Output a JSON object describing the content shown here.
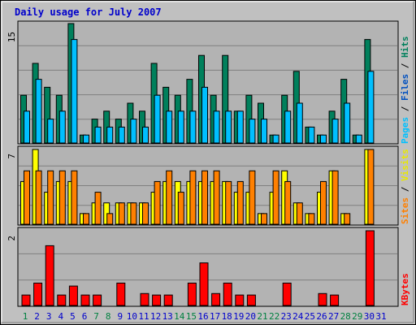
{
  "chart_data": [
    {
      "type": "bar",
      "title": "Daily usage for July 2007",
      "panel": "hits-files-pages",
      "ymax_label": "15",
      "legend": [
        "Pages",
        "Files",
        "Hits"
      ],
      "categories": [
        "1",
        "2",
        "3",
        "4",
        "5",
        "6",
        "7",
        "8",
        "9",
        "10",
        "11",
        "12",
        "13",
        "14",
        "15",
        "16",
        "17",
        "18",
        "19",
        "20",
        "21",
        "22",
        "23",
        "24",
        "25",
        "26",
        "27",
        "28",
        "29",
        "30",
        "31"
      ],
      "weekend_days": [
        "1",
        "7",
        "8",
        "14",
        "15",
        "21",
        "22",
        "28",
        "29"
      ],
      "series": [
        {
          "name": "Hits",
          "values": [
            6,
            10,
            7,
            6,
            15,
            1,
            3,
            4,
            3,
            5,
            4,
            10,
            7,
            6,
            8,
            11,
            6,
            11,
            4,
            6,
            5,
            1,
            6,
            9,
            2,
            1,
            4,
            8,
            1,
            13,
            0
          ]
        },
        {
          "name": "Files",
          "values": [
            4,
            8,
            3,
            4,
            13,
            1,
            2,
            2,
            2,
            3,
            2,
            6,
            4,
            4,
            4,
            7,
            4,
            4,
            4,
            3,
            3,
            1,
            4,
            5,
            2,
            1,
            3,
            5,
            1,
            9,
            0
          ]
        },
        {
          "name": "Pages",
          "values": [
            0,
            0,
            0,
            0,
            0,
            0,
            0,
            0,
            0,
            0,
            0,
            0,
            0,
            0,
            0,
            0,
            0,
            0,
            0,
            0,
            0,
            0,
            0,
            0,
            0,
            0,
            0,
            0,
            0,
            0,
            0
          ]
        }
      ]
    },
    {
      "type": "bar",
      "panel": "visits-sites",
      "ymax_label": "7",
      "legend": [
        "Sites",
        "Visits"
      ],
      "categories": [
        "1",
        "2",
        "3",
        "4",
        "5",
        "6",
        "7",
        "8",
        "9",
        "10",
        "11",
        "12",
        "13",
        "14",
        "15",
        "16",
        "17",
        "18",
        "19",
        "20",
        "21",
        "22",
        "23",
        "24",
        "25",
        "26",
        "27",
        "28",
        "29",
        "30",
        "31"
      ],
      "series": [
        {
          "name": "Visits",
          "values": [
            4,
            7,
            3,
            4,
            4,
            1,
            2,
            2,
            2,
            2,
            2,
            3,
            4,
            4,
            4,
            4,
            4,
            4,
            3,
            3,
            1,
            3,
            5,
            2,
            1,
            3,
            5,
            1,
            0,
            7,
            0
          ]
        },
        {
          "name": "Sites",
          "values": [
            5,
            5,
            5,
            5,
            5,
            1,
            3,
            1,
            2,
            2,
            2,
            4,
            5,
            3,
            5,
            5,
            5,
            4,
            4,
            5,
            1,
            5,
            4,
            2,
            1,
            4,
            5,
            1,
            0,
            7,
            0
          ]
        }
      ]
    },
    {
      "type": "bar",
      "panel": "kbytes",
      "ymax_label": "2",
      "legend": [
        "KBytes"
      ],
      "categories": [
        "1",
        "2",
        "3",
        "4",
        "5",
        "6",
        "7",
        "8",
        "9",
        "10",
        "11",
        "12",
        "13",
        "14",
        "15",
        "16",
        "17",
        "18",
        "19",
        "20",
        "21",
        "22",
        "23",
        "24",
        "25",
        "26",
        "27",
        "28",
        "29",
        "30",
        "31"
      ],
      "series": [
        {
          "name": "KBytes",
          "values": [
            0.14,
            0.3,
            0.8,
            0.14,
            0.26,
            0.14,
            0.14,
            0,
            0.3,
            0,
            0.16,
            0.14,
            0.14,
            0,
            0.3,
            0.57,
            0.16,
            0.3,
            0.14,
            0.14,
            0,
            0,
            0.3,
            0,
            0,
            0.16,
            0.14,
            0,
            0,
            1,
            0
          ]
        }
      ]
    }
  ],
  "colors": {
    "background": "#c0c0c0",
    "panel": "#b3b3b3",
    "title": "#0000cc",
    "hits": "#00805c",
    "files": "#00bfff",
    "pages": "#00c0ff",
    "visits": "#ffff00",
    "sites": "#ff8000",
    "kbytes": "#ff0000",
    "weekday_label": "#0000cc",
    "weekend_label": "#008040",
    "gridline": "#808080"
  }
}
